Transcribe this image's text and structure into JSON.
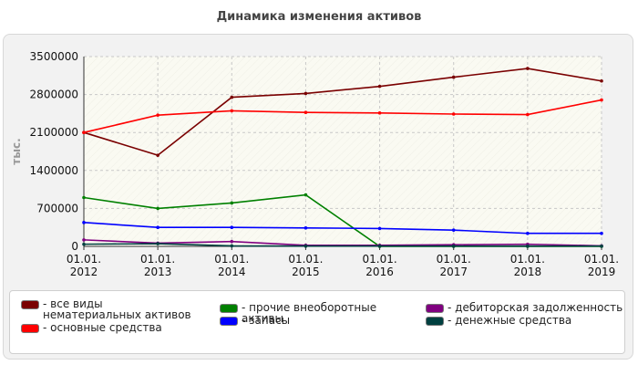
{
  "title": "Динамика изменения активов",
  "chart_data": {
    "type": "line",
    "title": "Динамика изменения активов",
    "ylabel": "тыс.",
    "xlabel": "",
    "categories": [
      "01.01.\n2012",
      "01.01.\n2013",
      "01.01.\n2014",
      "01.01.\n2015",
      "01.01.\n2016",
      "01.01.\n2017",
      "01.01.\n2018",
      "01.01.\n2019"
    ],
    "yticks": [
      0,
      700000,
      1400000,
      2100000,
      2800000,
      3500000
    ],
    "ytick_labels": [
      "0",
      "700000",
      "1400000",
      "2100000",
      "2800000",
      "3500000"
    ],
    "ylim": [
      0,
      3500000
    ],
    "grid": true,
    "legend_position": "bottom",
    "series": [
      {
        "name": "все виды нематериальных активов",
        "color": "#7a0000",
        "values": [
          2100000,
          1680000,
          2750000,
          2820000,
          2950000,
          3120000,
          3280000,
          3050000
        ]
      },
      {
        "name": "основные средства",
        "color": "#ff0000",
        "values": [
          2100000,
          2420000,
          2500000,
          2470000,
          2460000,
          2440000,
          2430000,
          2700000
        ]
      },
      {
        "name": "прочие внеоборотные активы",
        "color": "#008000",
        "values": [
          900000,
          700000,
          800000,
          950000,
          0,
          0,
          0,
          0
        ]
      },
      {
        "name": "запасы",
        "color": "#0000ff",
        "values": [
          440000,
          350000,
          350000,
          340000,
          330000,
          300000,
          240000,
          240000
        ]
      },
      {
        "name": "дебиторская задолженность",
        "color": "#800080",
        "values": [
          120000,
          60000,
          90000,
          20000,
          20000,
          30000,
          40000,
          10000
        ]
      },
      {
        "name": "денежные средства",
        "color": "#004040",
        "values": [
          40000,
          50000,
          10000,
          5000,
          5000,
          5000,
          5000,
          5000
        ]
      }
    ]
  }
}
